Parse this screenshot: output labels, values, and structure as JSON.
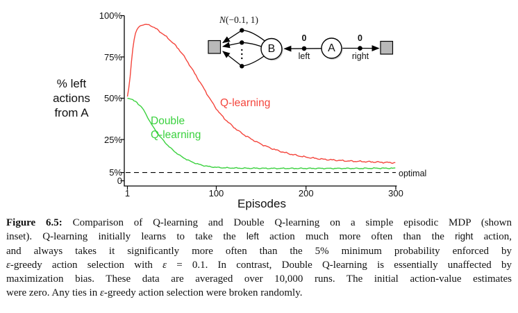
{
  "chart": {
    "y_axis": {
      "label_lines": [
        "% left",
        "actions",
        "from A"
      ],
      "ticks": [
        {
          "label": "100%",
          "pct": 100
        },
        {
          "label": "75%",
          "pct": 75
        },
        {
          "label": "50%",
          "pct": 50
        },
        {
          "label": "25%",
          "pct": 25
        },
        {
          "label": "5%",
          "pct": 5
        },
        {
          "label": "0",
          "pct": 0
        }
      ]
    },
    "x_axis": {
      "label": "Episodes",
      "ticks": [
        {
          "label": "1",
          "ep": 1
        },
        {
          "label": "100",
          "ep": 100
        },
        {
          "label": "200",
          "ep": 200
        },
        {
          "label": "300",
          "ep": 300
        }
      ]
    },
    "curve_labels": {
      "q": "Q-learning",
      "double_line1": "Double",
      "double_line2": "Q-learning",
      "optimal": "optimal"
    }
  },
  "inset": {
    "dist_n": "N",
    "dist_rest": "(−0.1, 1)",
    "state_b": "B",
    "state_a": "A",
    "reward_left": "0",
    "reward_right": "0",
    "action_left": "left",
    "action_right": "right"
  },
  "colors": {
    "q_learning": "#f4453c",
    "double_q": "#3ad13e",
    "axis": "#000000",
    "dashed_line": "#000000",
    "terminal_square": "#b9b9b9"
  },
  "chart_data": {
    "type": "line",
    "title": "",
    "xlabel": "Episodes",
    "ylabel": "% left actions from A",
    "xlim": [
      1,
      300
    ],
    "ylim": [
      0,
      100
    ],
    "x_ticks": [
      1,
      100,
      200,
      300
    ],
    "y_ticks_pct": [
      0,
      5,
      25,
      50,
      75,
      100
    ],
    "grid": false,
    "legend_position": "inline-labels",
    "reference_line": {
      "value": 5,
      "label": "optimal",
      "style": "dashed"
    },
    "series": [
      {
        "name": "Q-learning",
        "color": "#f4453c",
        "points": [
          [
            1,
            51
          ],
          [
            2,
            54
          ],
          [
            3,
            58
          ],
          [
            4,
            63
          ],
          [
            5,
            69
          ],
          [
            6,
            75
          ],
          [
            7,
            80
          ],
          [
            8,
            84
          ],
          [
            9,
            87
          ],
          [
            10,
            89.3
          ],
          [
            12,
            92
          ],
          [
            14,
            93.3
          ],
          [
            16,
            94
          ],
          [
            18,
            94.4
          ],
          [
            20,
            94.6
          ],
          [
            23,
            94.6
          ],
          [
            26,
            94.2
          ],
          [
            29,
            93.4
          ],
          [
            32,
            92.4
          ],
          [
            35,
            91.2
          ],
          [
            38,
            90
          ],
          [
            41,
            88.7
          ],
          [
            44,
            87.3
          ],
          [
            47,
            85.9
          ],
          [
            50,
            84.4
          ],
          [
            54,
            82.2
          ],
          [
            58,
            79.8
          ],
          [
            62,
            77
          ],
          [
            66,
            73.8
          ],
          [
            70,
            70.3
          ],
          [
            74,
            66.8
          ],
          [
            78,
            63.2
          ],
          [
            82,
            59.6
          ],
          [
            86,
            56
          ],
          [
            90,
            52.3
          ],
          [
            94,
            48.7
          ],
          [
            98,
            45.3
          ],
          [
            102,
            42.2
          ],
          [
            106,
            39.5
          ],
          [
            110,
            37.2
          ],
          [
            115,
            34.6
          ],
          [
            120,
            32.2
          ],
          [
            126,
            29.7
          ],
          [
            132,
            27.5
          ],
          [
            138,
            25.6
          ],
          [
            145,
            23.5
          ],
          [
            152,
            21.7
          ],
          [
            160,
            19.9
          ],
          [
            168,
            18.4
          ],
          [
            176,
            17.1
          ],
          [
            184,
            16
          ],
          [
            192,
            15.1
          ],
          [
            200,
            14.3
          ],
          [
            210,
            13.6
          ],
          [
            220,
            13
          ],
          [
            230,
            12.6
          ],
          [
            240,
            12.2
          ],
          [
            250,
            11.9
          ],
          [
            260,
            11.7
          ],
          [
            270,
            11.5
          ],
          [
            280,
            11.3
          ],
          [
            290,
            11.1
          ],
          [
            300,
            10.9
          ]
        ]
      },
      {
        "name": "Double Q-learning",
        "color": "#3ad13e",
        "points": [
          [
            1,
            50
          ],
          [
            2,
            49.9
          ],
          [
            4,
            49.6
          ],
          [
            6,
            49.3
          ],
          [
            7,
            49.1
          ],
          [
            8,
            48.4
          ],
          [
            10,
            48.1
          ],
          [
            12,
            47.3
          ],
          [
            13,
            46.3
          ],
          [
            15,
            45.6
          ],
          [
            17,
            44.5
          ],
          [
            19,
            42.9
          ],
          [
            21,
            41
          ],
          [
            23,
            38.9
          ],
          [
            25,
            36.9
          ],
          [
            27,
            35
          ],
          [
            29,
            33.2
          ],
          [
            31,
            31.5
          ],
          [
            33,
            29.9
          ],
          [
            36,
            27.7
          ],
          [
            39,
            25.7
          ],
          [
            42,
            23.8
          ],
          [
            45,
            22
          ],
          [
            48,
            20.4
          ],
          [
            51,
            18.9
          ],
          [
            54,
            17.5
          ],
          [
            57,
            16.3
          ],
          [
            60,
            15.1
          ],
          [
            63,
            14.1
          ],
          [
            66,
            13.2
          ],
          [
            69,
            12.4
          ],
          [
            72,
            11.6
          ],
          [
            75,
            11
          ],
          [
            78,
            10.4
          ],
          [
            81,
            9.9
          ],
          [
            85,
            9.3
          ],
          [
            89,
            8.9
          ],
          [
            93,
            8.5
          ],
          [
            97,
            8.3
          ],
          [
            101,
            8.1
          ],
          [
            107,
            7.9
          ],
          [
            114,
            7.8
          ],
          [
            122,
            7.7
          ],
          [
            132,
            7.6
          ],
          [
            145,
            7.6
          ],
          [
            160,
            7.5
          ],
          [
            180,
            7.5
          ],
          [
            200,
            7.5
          ],
          [
            220,
            7.5
          ],
          [
            240,
            7.5
          ],
          [
            260,
            7.5
          ],
          [
            280,
            7.6
          ],
          [
            300,
            7.6
          ]
        ]
      }
    ]
  },
  "caption": {
    "lines": [
      {
        "justify": true,
        "segments": [
          {
            "text": "Figure 6.5:",
            "style": "bold"
          },
          {
            "text": "  Comparison of Q-learning and Double Q-learning on a simple episodic MDP (shown",
            "style": "serif"
          }
        ]
      },
      {
        "justify": true,
        "segments": [
          {
            "text": "inset). Q-learning initially learns to take the ",
            "style": "serif"
          },
          {
            "text": "left",
            "style": "sans"
          },
          {
            "text": " action much more often than the ",
            "style": "serif"
          },
          {
            "text": "right",
            "style": "sans"
          },
          {
            "text": " action,",
            "style": "serif"
          }
        ]
      },
      {
        "justify": true,
        "segments": [
          {
            "text": "and always takes it significantly more often than the 5% minimum probability enforced by",
            "style": "serif"
          }
        ]
      },
      {
        "justify": true,
        "segments": [
          {
            "text": "ε",
            "style": "eps"
          },
          {
            "text": "-greedy action selection with ",
            "style": "serif"
          },
          {
            "text": "ε",
            "style": "eps"
          },
          {
            "text": " = 0.1. In contrast, Double Q-learning is essentially unaffected by",
            "style": "serif"
          }
        ]
      },
      {
        "justify": true,
        "segments": [
          {
            "text": "maximization bias. These data are averaged over 10,000 runs. The initial action-value estimates",
            "style": "serif"
          }
        ]
      },
      {
        "justify": false,
        "segments": [
          {
            "text": "were zero. Any ties in ",
            "style": "serif"
          },
          {
            "text": "ε",
            "style": "eps"
          },
          {
            "text": "-greedy action selection were broken randomly.",
            "style": "serif"
          }
        ]
      }
    ]
  }
}
